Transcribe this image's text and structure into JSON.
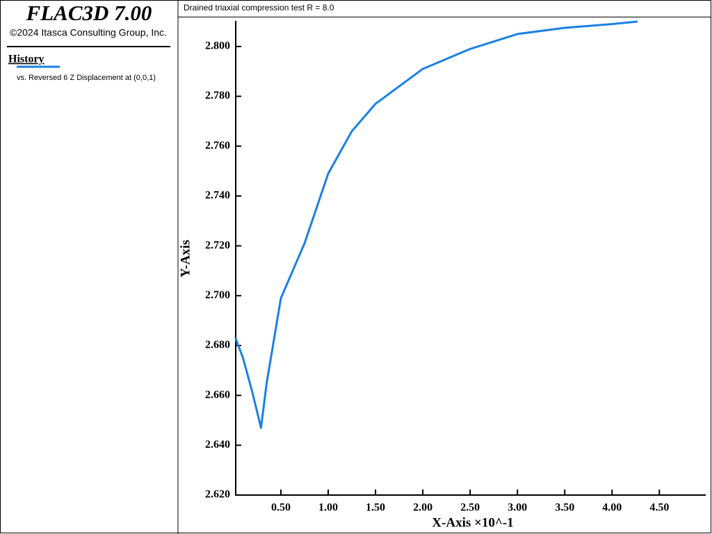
{
  "header": {
    "title": "FLAC3D 7.00",
    "copyright": "©2024 Itasca Consulting Group, Inc.",
    "section": "History"
  },
  "chart_data": {
    "type": "line",
    "title": "Drained triaxial compression test R = 8.0",
    "x_label": "X-Axis ×10^-1",
    "y_label": "Y-Axis",
    "x": [
      0.02,
      0.1,
      0.2,
      0.29,
      0.35,
      0.5,
      0.75,
      1.0,
      1.25,
      1.5,
      2.0,
      2.5,
      3.0,
      3.5,
      4.0,
      4.27
    ],
    "series": [
      {
        "name": "vs. Reversed 6 Z Displacement at (0,0,1)",
        "color": "#1a80e6",
        "values": [
          2.683,
          2.675,
          2.661,
          2.647,
          2.665,
          2.699,
          2.721,
          2.749,
          2.766,
          2.777,
          2.791,
          2.799,
          2.805,
          2.8075,
          2.809,
          2.81
        ]
      }
    ],
    "xlim": [
      0.03,
      4.99
    ],
    "ylim": [
      2.62,
      2.81
    ],
    "xticks": [
      {
        "value": 0.5,
        "label": "0.50"
      },
      {
        "value": 1.0,
        "label": "1.00"
      },
      {
        "value": 1.5,
        "label": "1.50"
      },
      {
        "value": 2.0,
        "label": "2.00"
      },
      {
        "value": 2.5,
        "label": "2.50"
      },
      {
        "value": 3.0,
        "label": "3.00"
      },
      {
        "value": 3.5,
        "label": "3.50"
      },
      {
        "value": 4.0,
        "label": "4.00"
      },
      {
        "value": 4.5,
        "label": "4.50"
      }
    ],
    "yticks": [
      {
        "value": 2.62,
        "label": "2.620"
      },
      {
        "value": 2.64,
        "label": "2.640"
      },
      {
        "value": 2.66,
        "label": "2.660"
      },
      {
        "value": 2.68,
        "label": "2.680"
      },
      {
        "value": 2.7,
        "label": "2.700"
      },
      {
        "value": 2.72,
        "label": "2.720"
      },
      {
        "value": 2.74,
        "label": "2.740"
      },
      {
        "value": 2.76,
        "label": "2.760"
      },
      {
        "value": 2.78,
        "label": "2.780"
      },
      {
        "value": 2.8,
        "label": "2.800"
      }
    ]
  }
}
